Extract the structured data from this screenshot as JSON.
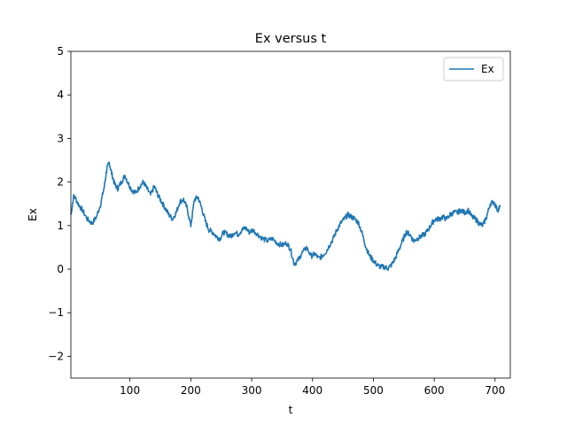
{
  "chart_data": {
    "type": "line",
    "title": "Ex versus t",
    "xlabel": "t",
    "ylabel": "Ex",
    "xlim": [
      3,
      725
    ],
    "ylim": [
      -2.5,
      5
    ],
    "xticks": [
      100,
      200,
      300,
      400,
      500,
      600,
      700
    ],
    "yticks": [
      -2,
      -1,
      0,
      1,
      2,
      3,
      4,
      5
    ],
    "grid": false,
    "legend": "top-right",
    "series": [
      {
        "name": "Ex",
        "color": "#1f77b4",
        "x": [
          3,
          8,
          15,
          22,
          30,
          38,
          45,
          52,
          58,
          62,
          66,
          70,
          75,
          80,
          86,
          92,
          98,
          104,
          110,
          116,
          122,
          128,
          134,
          140,
          146,
          152,
          158,
          164,
          170,
          176,
          182,
          188,
          194,
          200,
          206,
          212,
          218,
          224,
          230,
          236,
          242,
          248,
          254,
          260,
          266,
          272,
          278,
          284,
          290,
          296,
          302,
          310,
          318,
          326,
          334,
          342,
          350,
          358,
          364,
          370,
          376,
          382,
          390,
          398,
          404,
          410,
          416,
          422,
          428,
          434,
          440,
          446,
          452,
          458,
          464,
          470,
          476,
          482,
          488,
          494,
          500,
          506,
          512,
          518,
          524,
          530,
          536,
          542,
          548,
          554,
          560,
          566,
          572,
          578,
          584,
          590,
          596,
          602,
          608,
          614,
          620,
          626,
          632,
          638,
          644,
          650,
          656,
          662,
          668,
          674,
          680,
          686,
          692,
          698,
          704,
          709
        ],
        "y": [
          1.25,
          1.7,
          1.5,
          1.35,
          1.15,
          1.05,
          1.2,
          1.5,
          1.9,
          2.3,
          2.45,
          2.2,
          1.95,
          1.85,
          2.0,
          2.15,
          1.95,
          1.8,
          1.75,
          1.9,
          2.0,
          1.85,
          1.7,
          1.9,
          1.7,
          1.55,
          1.4,
          1.25,
          1.15,
          1.3,
          1.55,
          1.6,
          1.4,
          1.0,
          1.6,
          1.65,
          1.4,
          1.1,
          0.9,
          0.85,
          0.75,
          0.7,
          0.85,
          0.8,
          0.75,
          0.85,
          0.8,
          0.9,
          0.95,
          0.85,
          0.9,
          0.8,
          0.7,
          0.65,
          0.7,
          0.6,
          0.55,
          0.6,
          0.45,
          0.12,
          0.2,
          0.35,
          0.5,
          0.3,
          0.35,
          0.25,
          0.3,
          0.4,
          0.55,
          0.7,
          0.9,
          1.05,
          1.15,
          1.25,
          1.2,
          1.15,
          1.05,
          0.8,
          0.5,
          0.3,
          0.2,
          0.1,
          0.05,
          0.05,
          0.02,
          0.1,
          0.25,
          0.45,
          0.65,
          0.85,
          0.8,
          0.65,
          0.7,
          0.75,
          0.8,
          0.9,
          1.05,
          1.15,
          1.15,
          1.2,
          1.15,
          1.25,
          1.3,
          1.3,
          1.35,
          1.3,
          1.35,
          1.2,
          1.15,
          1.05,
          1.0,
          1.2,
          1.5,
          1.55,
          1.35,
          1.45
        ]
      }
    ]
  }
}
